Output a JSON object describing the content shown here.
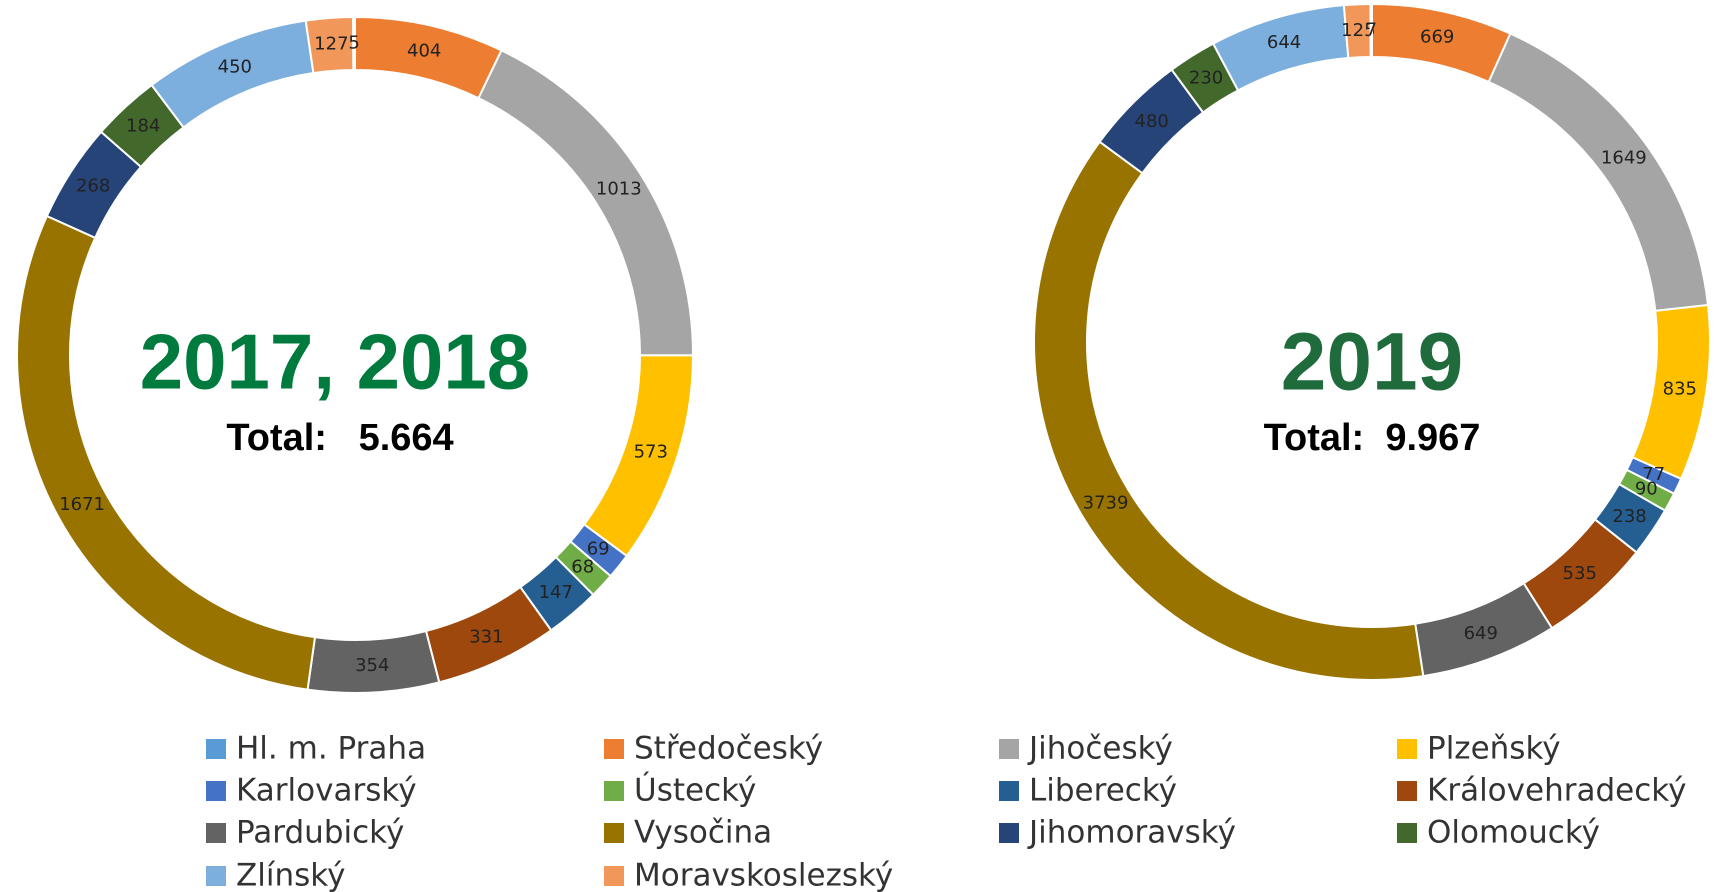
{
  "chart_data": [
    {
      "type": "pie",
      "title": "2017, 2018",
      "subtitle": "Total:   5.664",
      "values": [
        404,
        1013,
        573,
        69,
        68,
        147,
        331,
        354,
        1671,
        268,
        184,
        450,
        127,
        5
      ]
    },
    {
      "type": "pie",
      "title": "2019",
      "subtitle": "Total:  9.967",
      "values": [
        669,
        1649,
        835,
        77,
        90,
        238,
        535,
        649,
        3739,
        480,
        230,
        644,
        125,
        7
      ]
    }
  ],
  "legend": {
    "categories": [
      "Středočeský",
      "Jihočeský",
      "Plzeňský",
      "Karlovarský",
      "Ústecký",
      "Liberecký",
      "Královehradecký",
      "Pardubický",
      "Vysočina",
      "Jihomoravský",
      "Olomoucký",
      "Zlínský",
      "Moravskoslezský",
      "Hl. m. Praha"
    ],
    "colors": [
      "#ed7d31",
      "#a5a5a5",
      "#ffc000",
      "#4472c4",
      "#70ad47",
      "#255e91",
      "#9e480e",
      "#636363",
      "#997300",
      "#264478",
      "#43682b",
      "#7cafdd",
      "#f1975a",
      "#5b9bd5"
    ]
  }
}
